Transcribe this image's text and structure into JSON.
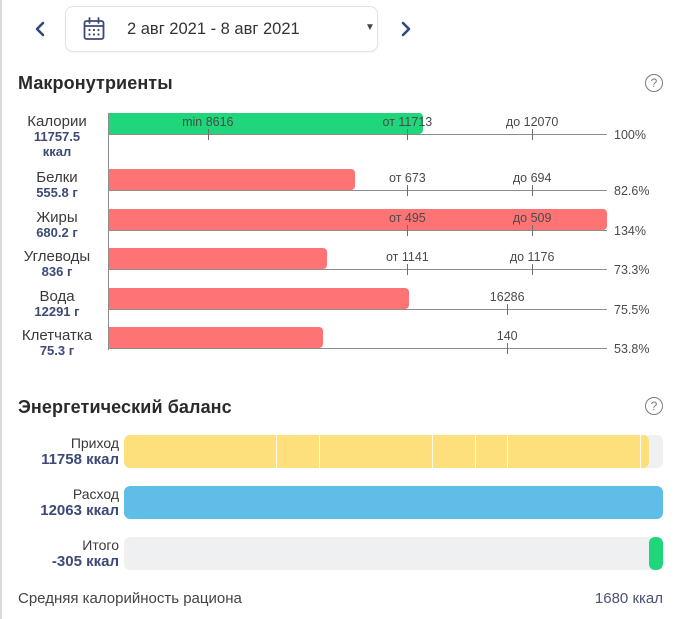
{
  "date_nav": {
    "prev_icon": "chevron-left-icon",
    "next_icon": "chevron-right-icon",
    "calendar_icon": "calendar-icon",
    "range_label": "2 авг 2021 - 8 авг 2021",
    "dropdown_glyph": "▼"
  },
  "macros": {
    "title": "Макронутриенты",
    "help_glyph": "?",
    "rows": [
      {
        "name": "Калории",
        "value": "11757.5",
        "unit": "ккал",
        "amount": 11757.5,
        "percent": "100%",
        "status": "ok",
        "ticks": [
          {
            "label": "min 8616",
            "kind": "min",
            "value": 8616
          },
          {
            "label": "от 11713",
            "kind": "from",
            "value": 11713
          },
          {
            "label": "до 12070",
            "kind": "to",
            "value": 12070
          }
        ]
      },
      {
        "name": "Белки",
        "value": "555.8",
        "unit": "г",
        "amount": 555.8,
        "percent": "82.6%",
        "status": "warn",
        "ticks": [
          {
            "label": "от 673",
            "kind": "from",
            "value": 673
          },
          {
            "label": "до 694",
            "kind": "to",
            "value": 694
          }
        ]
      },
      {
        "name": "Жиры",
        "value": "680.2",
        "unit": "г",
        "amount": 680.2,
        "percent": "134%",
        "status": "warn",
        "ticks": [
          {
            "label": "от 495",
            "kind": "from",
            "value": 495
          },
          {
            "label": "до 509",
            "kind": "to",
            "value": 509
          }
        ]
      },
      {
        "name": "Углеводы",
        "value": "836",
        "unit": "г",
        "amount": 836,
        "percent": "73.3%",
        "status": "warn",
        "ticks": [
          {
            "label": "от 1141",
            "kind": "from",
            "value": 1141
          },
          {
            "label": "до 1176",
            "kind": "to",
            "value": 1176
          }
        ]
      },
      {
        "name": "Вода",
        "value": "12291",
        "unit": "г",
        "amount": 12291,
        "percent": "75.5%",
        "status": "warn",
        "ticks": [
          {
            "label": "16286",
            "kind": "target",
            "value": 16286
          }
        ]
      },
      {
        "name": "Клетчатка",
        "value": "75.3",
        "unit": "г",
        "amount": 75.3,
        "percent": "53.8%",
        "status": "warn",
        "ticks": [
          {
            "label": "140",
            "kind": "target",
            "value": 140
          }
        ]
      }
    ]
  },
  "energy": {
    "title": "Энергетический баланс",
    "help_glyph": "?",
    "rows": [
      {
        "label": "Приход",
        "value": "11758 ккал",
        "amount": 11758,
        "segments_kcal": [
          3447,
          940,
          2551,
          940,
          694,
          2999,
          187
        ]
      },
      {
        "label": "Расход",
        "value": "12063 ккал",
        "amount": 12063
      },
      {
        "label": "Итого",
        "value": "-305 ккал",
        "amount": -305
      }
    ]
  },
  "footer": {
    "label": "Средняя калорийность рациона",
    "value": "1680 ккал"
  },
  "colors": {
    "ok": "#20d67b",
    "warn": "#fe7474",
    "intake": "#fde07b",
    "expense": "#5fbde8",
    "balance": "#20d67b",
    "track": "#eff0f2",
    "accent_text": "#3d4a78",
    "chevron": "#2f4a7a"
  }
}
